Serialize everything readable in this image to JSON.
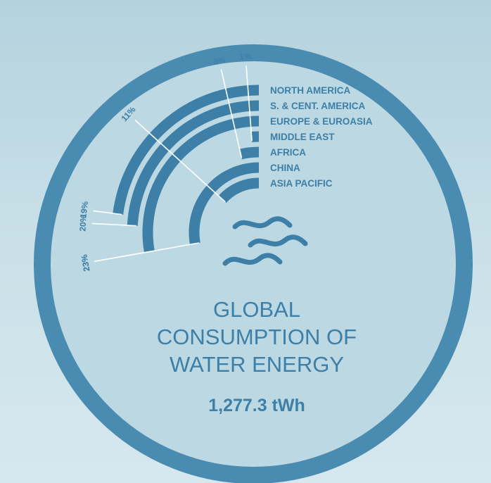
{
  "colors": {
    "primary": "#3d7fa6",
    "ring": "#4a8bb1",
    "disc": "#bcd8e3",
    "label": "#ffffff"
  },
  "title_lines": [
    "GLOBAL",
    "CONSUMPTION OF",
    "WATER ENERGY"
  ],
  "total": "1,277.3 tWh",
  "icon": "water-waves-icon",
  "chart_data": {
    "type": "radial-bar",
    "title": "GLOBAL CONSUMPTION OF WATER ENERGY",
    "total": "1,277.3 tWh",
    "categories": [
      "NORTH AMERICA",
      "S. & CENT. AMERICA",
      "EUROPE & EUROASIA",
      "MIDDLE EAST",
      "AFRICA",
      "CHINA",
      "ASIA PACIFIC"
    ],
    "values": [
      19,
      20,
      23,
      1,
      3,
      23,
      11
    ],
    "value_labels": [
      "19%",
      "20%",
      "23%",
      "1%",
      "3%",
      "23%",
      "11%"
    ],
    "unit": "%"
  }
}
